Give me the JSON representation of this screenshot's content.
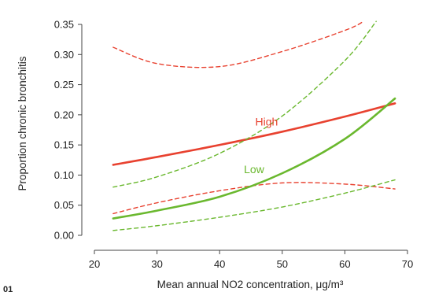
{
  "chart_data": {
    "type": "line",
    "xlabel": "Mean annual NO2 concentration, μg/m³",
    "ylabel": "Proportion chronic bronchitis",
    "xlim": [
      20,
      70
    ],
    "ylim": [
      0.0,
      0.35
    ],
    "xticks": [
      "20",
      "30",
      "40",
      "50",
      "60",
      "70"
    ],
    "yticks": [
      "0.00",
      "0.05",
      "0.10",
      "0.15",
      "0.20",
      "0.25",
      "0.30",
      "0.35"
    ],
    "corner_text": "01",
    "series": [
      {
        "name": "High",
        "color": "#e8412f",
        "style": "solid",
        "x": [
          23,
          30,
          40,
          50,
          60,
          68
        ],
        "y": [
          0.117,
          0.13,
          0.15,
          0.172,
          0.197,
          0.219
        ]
      },
      {
        "color": "#e8412f",
        "style": "dashed",
        "x": [
          23,
          30,
          40,
          50,
          60,
          63
        ],
        "y": [
          0.312,
          0.285,
          0.28,
          0.305,
          0.34,
          0.355
        ]
      },
      {
        "color": "#e8412f",
        "style": "dashed",
        "x": [
          23,
          30,
          40,
          50,
          60,
          68
        ],
        "y": [
          0.036,
          0.054,
          0.074,
          0.087,
          0.085,
          0.077
        ]
      },
      {
        "name": "Low",
        "color": "#6ab82e",
        "style": "solid",
        "x": [
          23,
          30,
          40,
          50,
          60,
          68
        ],
        "y": [
          0.028,
          0.041,
          0.064,
          0.103,
          0.16,
          0.227
        ]
      },
      {
        "color": "#6ab82e",
        "style": "dashed",
        "x": [
          23,
          30,
          40,
          50,
          60,
          65
        ],
        "y": [
          0.08,
          0.097,
          0.136,
          0.198,
          0.29,
          0.355
        ]
      },
      {
        "color": "#6ab82e",
        "style": "dashed",
        "x": [
          23,
          30,
          40,
          50,
          60,
          68
        ],
        "y": [
          0.008,
          0.016,
          0.03,
          0.047,
          0.07,
          0.092
        ]
      }
    ],
    "annotations": [
      {
        "text": "High",
        "x": 47.5,
        "y": 0.182,
        "color": "#e8412f"
      },
      {
        "text": "Low",
        "x": 45.5,
        "y": 0.103,
        "color": "#6ab82e"
      }
    ]
  }
}
